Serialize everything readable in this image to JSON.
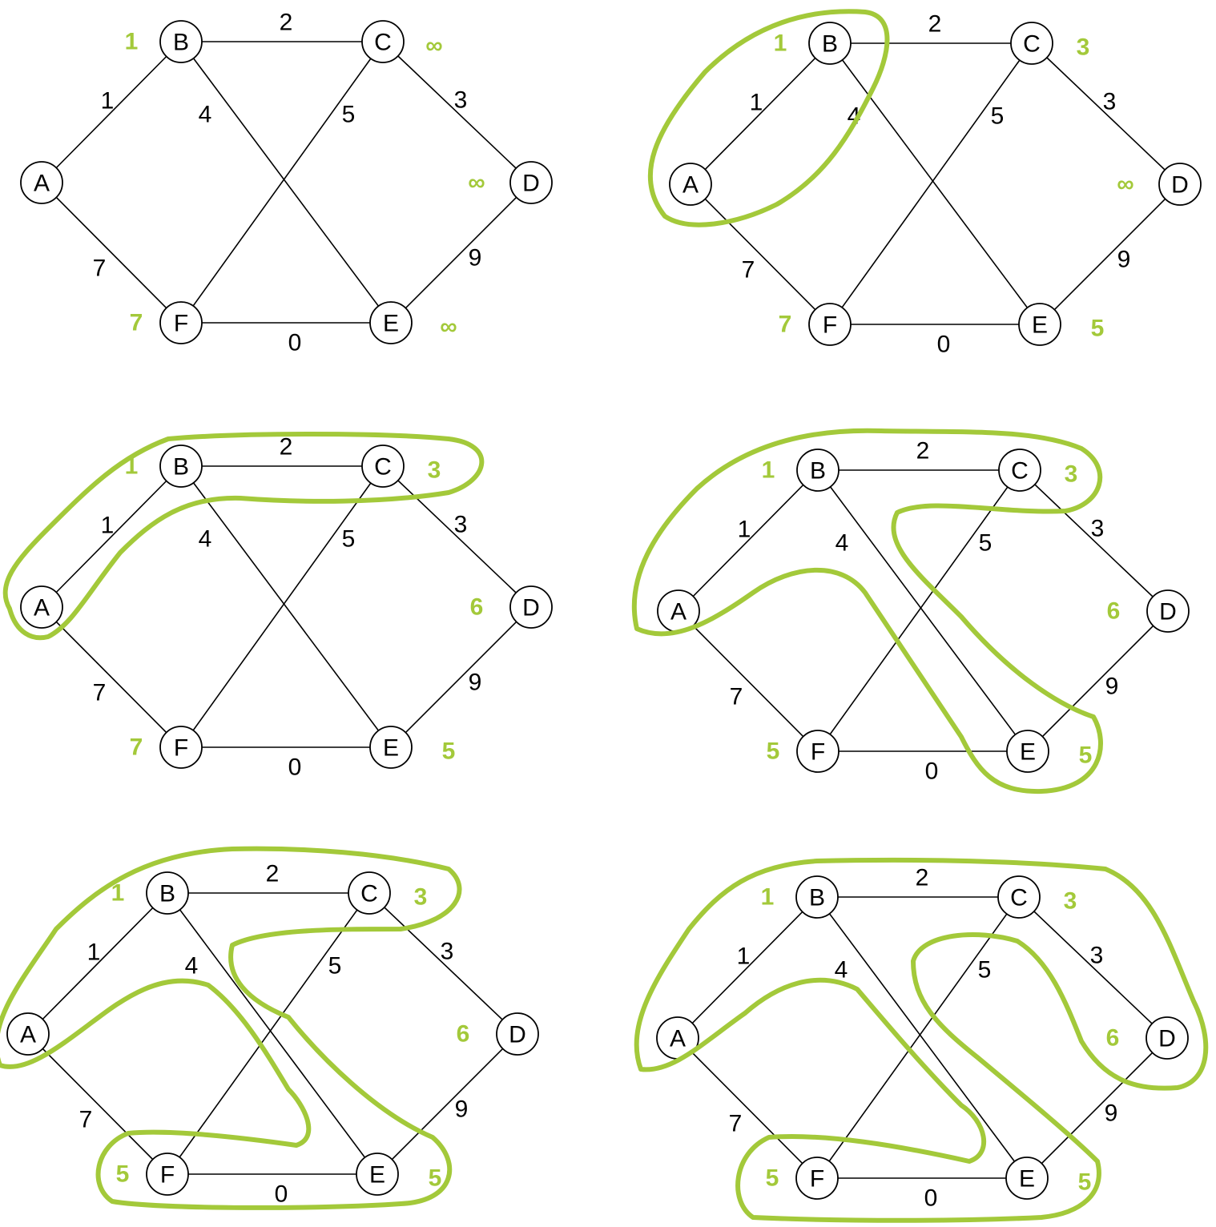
{
  "style": {
    "accent": "#a3c93a",
    "ink": "#000000"
  },
  "graph": {
    "nodes": [
      "A",
      "B",
      "C",
      "D",
      "E",
      "F"
    ],
    "edges": [
      {
        "from": "A",
        "to": "B",
        "weight": "1"
      },
      {
        "from": "B",
        "to": "C",
        "weight": "2"
      },
      {
        "from": "C",
        "to": "D",
        "weight": "3"
      },
      {
        "from": "B",
        "to": "E",
        "weight": "4"
      },
      {
        "from": "C",
        "to": "F",
        "weight": "5"
      },
      {
        "from": "A",
        "to": "F",
        "weight": "7"
      },
      {
        "from": "E",
        "to": "D",
        "weight": "9"
      },
      {
        "from": "F",
        "to": "E",
        "weight": "0"
      }
    ]
  },
  "panels": [
    {
      "distances": {
        "B": "1",
        "C": "∞",
        "D": "∞",
        "E": "∞",
        "F": "7"
      },
      "enclosed": []
    },
    {
      "distances": {
        "B": "1",
        "C": "3",
        "D": "∞",
        "E": "5",
        "F": "7"
      },
      "enclosed": [
        "A",
        "B"
      ]
    },
    {
      "distances": {
        "B": "1",
        "C": "3",
        "D": "6",
        "E": "5",
        "F": "7"
      },
      "enclosed": [
        "A",
        "B",
        "C"
      ]
    },
    {
      "distances": {
        "B": "1",
        "C": "3",
        "D": "6",
        "E": "5",
        "F": "5"
      },
      "enclosed": [
        "A",
        "B",
        "C",
        "E"
      ]
    },
    {
      "distances": {
        "B": "1",
        "C": "3",
        "D": "6",
        "E": "5",
        "F": "5"
      },
      "enclosed": [
        "A",
        "B",
        "C",
        "E",
        "F"
      ]
    },
    {
      "distances": {
        "B": "1",
        "C": "3",
        "D": "6",
        "E": "5",
        "F": "5"
      },
      "enclosed": [
        "A",
        "B",
        "C",
        "E",
        "F",
        "D"
      ]
    }
  ]
}
